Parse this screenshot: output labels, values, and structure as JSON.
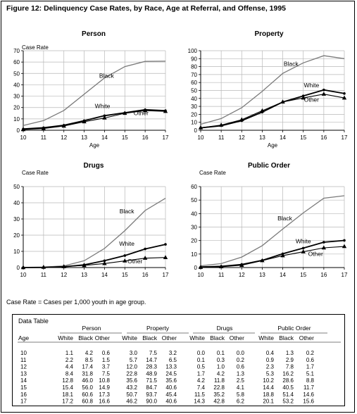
{
  "figure": {
    "title": "Figure 12: Delinquency Case Rates, by Race, Age at Referral, and Offense, 1995",
    "note": "Case Rate = Cases per 1,000 youth in age group."
  },
  "chart_data": [
    {
      "type": "line",
      "title": "Person",
      "ylabel": "Case Rate",
      "xlabel": "Age",
      "x": [
        10,
        11,
        12,
        13,
        14,
        15,
        16,
        17
      ],
      "ylim": [
        0,
        70
      ],
      "yticks": [
        0,
        10,
        20,
        30,
        40,
        50,
        60,
        70
      ],
      "series": [
        {
          "name": "Black",
          "values": [
            4.2,
            8.5,
            17.4,
            31.8,
            46.0,
            56.0,
            60.6,
            60.8
          ]
        },
        {
          "name": "White",
          "values": [
            1.1,
            2.2,
            4.4,
            8.4,
            12.8,
            15.4,
            18.1,
            17.2
          ]
        },
        {
          "name": "Other",
          "values": [
            0.6,
            1.5,
            3.7,
            7.5,
            10.8,
            14.9,
            17.3,
            16.6
          ]
        }
      ],
      "labels": [
        {
          "text": "Black",
          "x": 14.1,
          "y": 46
        },
        {
          "text": "White",
          "x": 13.9,
          "y": 19.5
        },
        {
          "text": "Other",
          "x": 15.8,
          "y": 13.2
        }
      ]
    },
    {
      "type": "line",
      "title": "Property",
      "ylabel": "",
      "xlabel": "Age",
      "x": [
        10,
        11,
        12,
        13,
        14,
        15,
        16,
        17
      ],
      "ylim": [
        0,
        100
      ],
      "yticks": [
        0,
        10,
        20,
        30,
        40,
        50,
        60,
        70,
        80,
        90,
        100
      ],
      "series": [
        {
          "name": "Black",
          "values": [
            7.5,
            14.7,
            28.3,
            48.9,
            71.5,
            84.7,
            93.7,
            90.0
          ]
        },
        {
          "name": "White",
          "values": [
            3.0,
            5.7,
            12.0,
            22.8,
            35.6,
            43.2,
            50.7,
            46.2
          ]
        },
        {
          "name": "Other",
          "values": [
            3.2,
            6.5,
            13.3,
            24.5,
            35.6,
            40.6,
            45.4,
            40.6
          ]
        }
      ],
      "labels": [
        {
          "text": "Black",
          "x": 14.4,
          "y": 81
        },
        {
          "text": "White",
          "x": 15.4,
          "y": 54
        },
        {
          "text": "Other",
          "x": 15.4,
          "y": 36
        }
      ]
    },
    {
      "type": "line",
      "title": "Drugs",
      "ylabel": "Case Rate",
      "xlabel": "",
      "x": [
        10,
        11,
        12,
        13,
        14,
        15,
        16,
        17
      ],
      "ylim": [
        0,
        50
      ],
      "yticks": [
        0,
        10,
        20,
        30,
        40,
        50
      ],
      "series": [
        {
          "name": "Black",
          "values": [
            0.1,
            0.3,
            1.0,
            4.2,
            11.8,
            22.8,
            35.2,
            42.8
          ]
        },
        {
          "name": "White",
          "values": [
            0.0,
            0.1,
            0.5,
            1.7,
            4.2,
            7.4,
            11.5,
            14.3
          ]
        },
        {
          "name": "Other",
          "values": [
            0.0,
            0.2,
            0.6,
            1.3,
            2.5,
            4.1,
            5.8,
            6.2
          ]
        }
      ],
      "labels": [
        {
          "text": "Black",
          "x": 15.1,
          "y": 33.5
        },
        {
          "text": "White",
          "x": 15.1,
          "y": 13.5
        },
        {
          "text": "Other",
          "x": 15.5,
          "y": 2.6
        }
      ]
    },
    {
      "type": "line",
      "title": "Public Order",
      "ylabel": "Case Rate",
      "xlabel": "",
      "x": [
        10,
        11,
        12,
        13,
        14,
        15,
        16,
        17
      ],
      "ylim": [
        0,
        60
      ],
      "yticks": [
        0,
        10,
        20,
        30,
        40,
        50,
        60
      ],
      "series": [
        {
          "name": "Black",
          "values": [
            1.3,
            2.9,
            7.8,
            16.2,
            28.6,
            40.5,
            51.4,
            53.2
          ]
        },
        {
          "name": "White",
          "values": [
            0.4,
            0.9,
            2.3,
            5.3,
            10.2,
            14.4,
            18.8,
            20.1
          ]
        },
        {
          "name": "Other",
          "values": [
            0.2,
            0.6,
            1.7,
            5.1,
            8.8,
            11.7,
            14.6,
            15.6
          ]
        }
      ],
      "labels": [
        {
          "text": "Black",
          "x": 14.1,
          "y": 35
        },
        {
          "text": "White",
          "x": 15.0,
          "y": 18
        },
        {
          "text": "Other",
          "x": 15.6,
          "y": 8.5
        }
      ]
    }
  ],
  "data_table": {
    "title": "Data Table",
    "groups": [
      "Person",
      "Property",
      "Drugs",
      "Public Order"
    ],
    "row_header": "Age",
    "subheaders": [
      "White",
      "Black",
      "Other"
    ],
    "rows": [
      [
        "10",
        "1.1",
        "4.2",
        "0.6",
        "3.0",
        "7.5",
        "3.2",
        "0.0",
        "0.1",
        "0.0",
        "0.4",
        "1.3",
        "0.2"
      ],
      [
        "11",
        "2.2",
        "8.5",
        "1.5",
        "5.7",
        "14.7",
        "6.5",
        "0.1",
        "0.3",
        "0.2",
        "0.9",
        "2.9",
        "0.6"
      ],
      [
        "12",
        "4.4",
        "17.4",
        "3.7",
        "12.0",
        "28.3",
        "13.3",
        "0.5",
        "1.0",
        "0.6",
        "2.3",
        "7.8",
        "1.7"
      ],
      [
        "13",
        "8.4",
        "31.8",
        "7.5",
        "22.8",
        "48.9",
        "24.5",
        "1.7",
        "4.2",
        "1.3",
        "5.3",
        "16.2",
        "5.1"
      ],
      [
        "14",
        "12.8",
        "46.0",
        "10.8",
        "35.6",
        "71.5",
        "35.6",
        "4.2",
        "11.8",
        "2.5",
        "10.2",
        "28.6",
        "8.8"
      ],
      [
        "15",
        "15.4",
        "56.0",
        "14.9",
        "43.2",
        "84.7",
        "40.6",
        "7.4",
        "22.8",
        "4.1",
        "14.4",
        "40.5",
        "11.7"
      ],
      [
        "16",
        "18.1",
        "60.6",
        "17.3",
        "50.7",
        "93.7",
        "45.4",
        "11.5",
        "35.2",
        "5.8",
        "18.8",
        "51.4",
        "14.6"
      ],
      [
        "17",
        "17.2",
        "60.8",
        "16.6",
        "46.2",
        "90.0",
        "40.6",
        "14.3",
        "42.8",
        "6.2",
        "20.1",
        "53.2",
        "15.6"
      ]
    ]
  }
}
